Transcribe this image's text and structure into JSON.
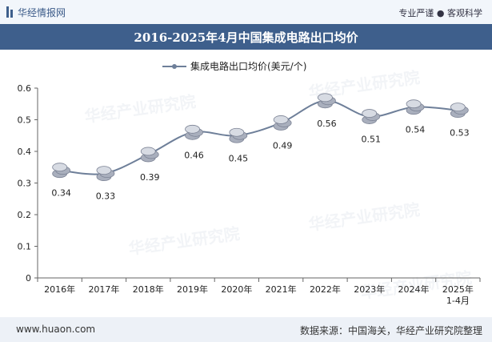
{
  "header": {
    "brand": "华经情报网",
    "right_text": "专业严谨 ● 客观科学"
  },
  "footer": {
    "website": "www.huaon.com",
    "source": "数据来源：中国海关，华经产业研究院整理"
  },
  "watermark": "华经产业研究院",
  "colors": {
    "line": "#6e7f99",
    "title_bg": "#3e5f8c",
    "coin": "#a9afbd"
  },
  "chart_data": {
    "type": "line",
    "title": "2016-2025年4月中国集成电路出口均价",
    "legend": "集成电路出口均价(美元/个)",
    "categories": [
      "2016年",
      "2017年",
      "2018年",
      "2019年",
      "2020年",
      "2021年",
      "2022年",
      "2023年",
      "2024年",
      "2025年\n1-4月"
    ],
    "values": [
      0.34,
      0.33,
      0.39,
      0.46,
      0.45,
      0.49,
      0.56,
      0.51,
      0.54,
      0.53
    ],
    "value_labels": [
      "0.34",
      "0.33",
      "0.39",
      "0.46",
      "0.45",
      "0.49",
      "0.56",
      "0.51",
      "0.54",
      "0.53"
    ],
    "ylim": [
      0,
      0.6
    ],
    "yticks": [
      "0",
      "0.1",
      "0.2",
      "0.3",
      "0.4",
      "0.5",
      "0.6"
    ],
    "xlabel": "",
    "ylabel": ""
  }
}
